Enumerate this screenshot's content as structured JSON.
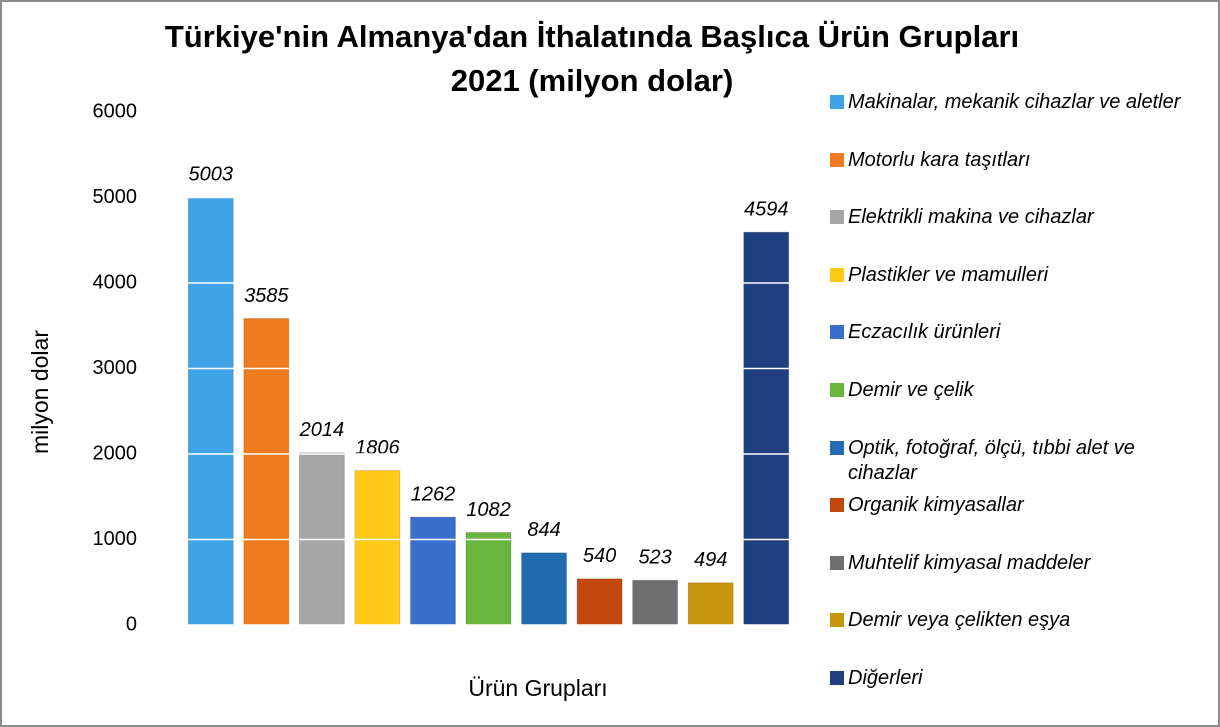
{
  "chart_data": {
    "type": "bar",
    "title": "Türkiye'nin Almanya'dan İthalatında Başlıca Ürün Grupları",
    "subtitle": "2021 (milyon dolar)",
    "x_label": "Ürün Grupları",
    "y_label": "milyon dolar",
    "categories": [
      "Makinalar, mekanik cihazlar ve aletler",
      "Motorlu kara taşıtları",
      "Elektrikli makina ve cihazlar",
      "Plastikler ve mamulleri",
      "Eczacılık ürünleri",
      "Demir ve çelik",
      "Optik, fotoğraf, ölçü, tıbbi alet ve cihazlar",
      "Organik kimyasallar",
      "Muhtelif kimyasal maddeler",
      "Demir veya çelikten eşya",
      "Diğerleri"
    ],
    "values": [
      5003,
      3585,
      2014,
      1806,
      1262,
      1082,
      844,
      540,
      523,
      494,
      4594
    ],
    "colors": [
      "#3fa3e6",
      "#f07a1e",
      "#a6a6a6",
      "#ffc917",
      "#3a6fd0",
      "#6ab53e",
      "#1f6db0",
      "#c2470f",
      "#6f6f6f",
      "#c8960c",
      "#1f3f80"
    ],
    "ylim": [
      0,
      6000
    ],
    "yticks": [
      0,
      1000,
      2000,
      3000,
      4000,
      5000,
      6000
    ],
    "grid": true,
    "grid_color": "#ffffff",
    "legend": "right"
  }
}
